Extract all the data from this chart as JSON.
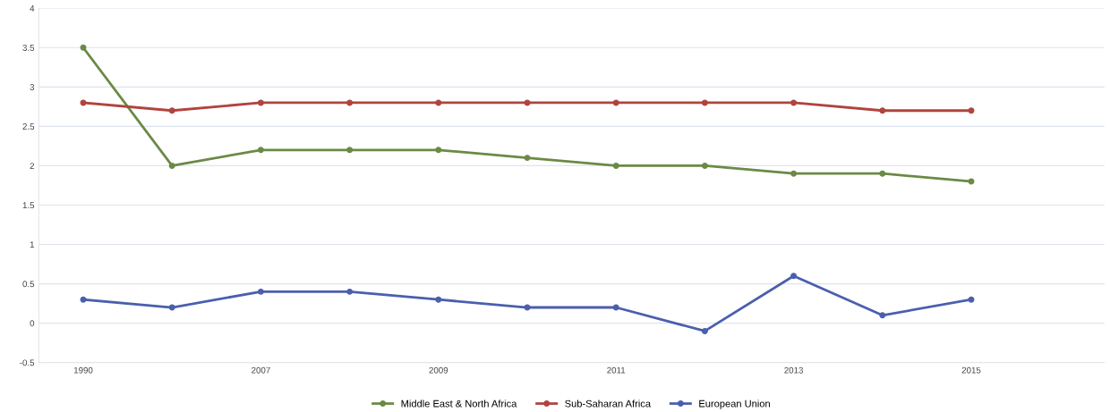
{
  "chart_data": {
    "type": "line",
    "categories": [
      "1990",
      null,
      "2007",
      null,
      "2009",
      null,
      "2011",
      null,
      "2013",
      null,
      "2015"
    ],
    "series": [
      {
        "name": "Middle East & North Africa",
        "color": "#6b8a45",
        "values": [
          3.5,
          2.0,
          2.2,
          2.2,
          2.2,
          2.1,
          2.0,
          2.0,
          1.9,
          1.9,
          1.8
        ]
      },
      {
        "name": "Sub-Saharan Africa",
        "color": "#b0443e",
        "values": [
          2.8,
          2.7,
          2.8,
          2.8,
          2.8,
          2.8,
          2.8,
          2.8,
          2.8,
          2.7,
          2.7
        ]
      },
      {
        "name": "European Union",
        "color": "#4a5fae",
        "values": [
          0.3,
          0.2,
          0.4,
          0.4,
          0.3,
          0.2,
          0.2,
          -0.1,
          0.6,
          0.1,
          0.3
        ]
      }
    ],
    "ylim": [
      -0.5,
      4
    ],
    "yticks": [
      -0.5,
      0,
      0.5,
      1,
      1.5,
      2,
      2.5,
      3,
      3.5,
      4
    ],
    "grid": "y",
    "legend": "bottom",
    "marker": "circle",
    "line_style": "solid"
  }
}
